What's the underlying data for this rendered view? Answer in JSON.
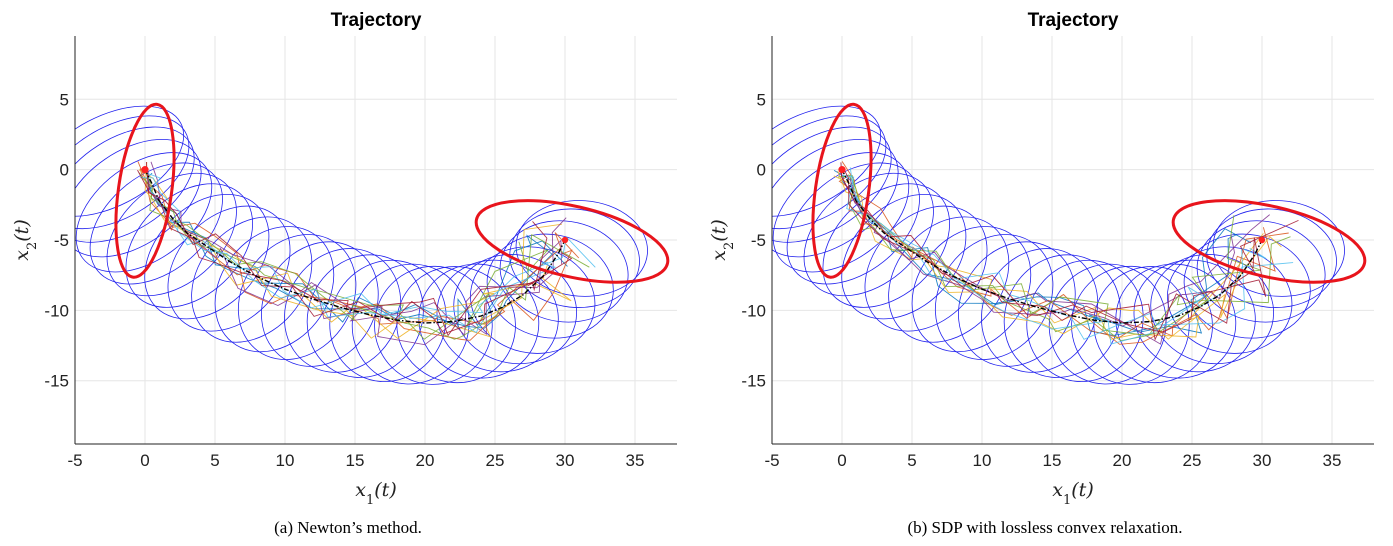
{
  "chart_data": [
    {
      "type": "line",
      "title": "Trajectory",
      "xlabel": "x1(t)",
      "ylabel": "x2(t)",
      "xlim": [
        -5,
        38
      ],
      "ylim": [
        -19.5,
        9.5
      ],
      "xticks": [
        -5,
        0,
        5,
        10,
        15,
        20,
        25,
        30,
        35
      ],
      "yticks": [
        5,
        0,
        -5,
        -10,
        -15
      ],
      "xtick_labels": [
        "-5",
        "0",
        "5",
        "10",
        "15",
        "20",
        "25",
        "30",
        "35"
      ],
      "ytick_labels": [
        "5",
        "0",
        "-5",
        "-10",
        "-15"
      ],
      "grid": true,
      "caption": "(a) Newton’s method.",
      "start_point": [
        0,
        0
      ],
      "target_point": [
        30,
        -5
      ],
      "start_ellipse": {
        "center": [
          0,
          -1.5
        ],
        "semi_axes": [
          1.9,
          6.2
        ],
        "color": "#e8141c"
      },
      "target_ellipse": {
        "center": [
          30.5,
          -5.1
        ],
        "semi_axes": [
          7.0,
          2.5
        ],
        "rotation_deg": 13,
        "color": "#e8141c"
      },
      "mean_trajectory": {
        "x": [
          0,
          0.5,
          1.0,
          2.0,
          3.0,
          4.5,
          6.0,
          8.0,
          10.0,
          12.0,
          14.0,
          16.0,
          18.0,
          20.0,
          22.0,
          24.0,
          25.5,
          27.0,
          28.5,
          29.5,
          30.0
        ],
        "y": [
          0,
          -1.0,
          -2.2,
          -3.5,
          -4.5,
          -5.5,
          -6.5,
          -7.6,
          -8.5,
          -9.2,
          -9.8,
          -10.3,
          -10.7,
          -10.9,
          -10.8,
          -10.4,
          -9.8,
          -8.9,
          -7.5,
          -6.0,
          -5.0
        ],
        "color": "#000000"
      },
      "uncertainty_ellipses_color": "#2222ee",
      "sample_colors": [
        "#0072bd",
        "#d95319",
        "#edb120",
        "#7e2f8e",
        "#77ac30",
        "#4dbeee",
        "#a2142f"
      ]
    },
    {
      "type": "line",
      "title": "Trajectory",
      "xlabel": "x1(t)",
      "ylabel": "x2(t)",
      "xlim": [
        -5,
        38
      ],
      "ylim": [
        -19.5,
        9.5
      ],
      "xticks": [
        -5,
        0,
        5,
        10,
        15,
        20,
        25,
        30,
        35
      ],
      "yticks": [
        5,
        0,
        -5,
        -10,
        -15
      ],
      "xtick_labels": [
        "-5",
        "0",
        "5",
        "10",
        "15",
        "20",
        "25",
        "30",
        "35"
      ],
      "ytick_labels": [
        "5",
        "0",
        "-5",
        "-10",
        "-15"
      ],
      "grid": true,
      "caption": "(b) SDP with lossless convex relaxation.",
      "start_point": [
        0,
        0
      ],
      "target_point": [
        30,
        -5
      ],
      "start_ellipse": {
        "center": [
          0,
          -1.5
        ],
        "semi_axes": [
          1.9,
          6.2
        ],
        "color": "#e8141c"
      },
      "target_ellipse": {
        "center": [
          30.5,
          -5.1
        ],
        "semi_axes": [
          7.0,
          2.5
        ],
        "rotation_deg": 13,
        "color": "#e8141c"
      },
      "mean_trajectory": {
        "x": [
          0,
          0.5,
          1.0,
          2.0,
          3.0,
          4.5,
          6.0,
          8.0,
          10.0,
          12.0,
          14.0,
          16.0,
          18.0,
          20.0,
          22.0,
          24.0,
          25.5,
          27.0,
          28.5,
          29.5,
          30.0
        ],
        "y": [
          0,
          -1.0,
          -2.2,
          -3.5,
          -4.5,
          -5.5,
          -6.5,
          -7.6,
          -8.5,
          -9.2,
          -9.8,
          -10.3,
          -10.7,
          -10.9,
          -10.8,
          -10.4,
          -9.8,
          -8.9,
          -7.5,
          -6.0,
          -5.0
        ],
        "color": "#000000"
      },
      "uncertainty_ellipses_color": "#2222ee",
      "sample_colors": [
        "#0072bd",
        "#d95319",
        "#edb120",
        "#7e2f8e",
        "#77ac30",
        "#4dbeee",
        "#a2142f"
      ]
    }
  ]
}
